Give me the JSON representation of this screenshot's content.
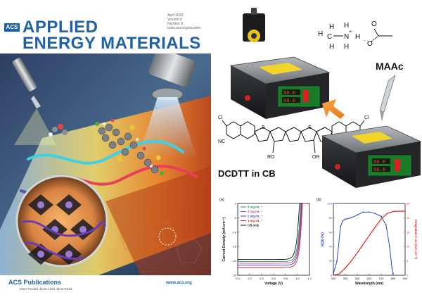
{
  "cover": {
    "badge": "ACS",
    "title_line1": "APPLIED",
    "title_line2": "ENERGY MATERIALS",
    "issue_line1": "April 2023",
    "issue_line2": "Volume 6",
    "issue_line3": "Number 8",
    "issue_line4": "pubs.acs.org/acsaem",
    "publisher": "ACS Publications",
    "tagline": "Most Trusted. Most Cited. Most Read.",
    "website": "www.acs.org"
  },
  "scheme": {
    "solvent_label": "MAAc",
    "molecule_label": "DCDTT in CB",
    "display_value1": "60.0",
    "display_value2": "60.0"
  },
  "chart_data": [
    {
      "type": "line",
      "panel": "(a)",
      "xlabel": "Voltage (V)",
      "ylabel": "Current Density (mA cm⁻²)",
      "x_ticks": [
        "0.0",
        "0.2",
        "0.4",
        "0.6",
        "0.8",
        "1.0",
        "1.2"
      ],
      "y_ticks": [
        "0",
        "-5",
        "-10",
        "-15",
        "-20",
        "-25"
      ],
      "xlim": [
        0.0,
        1.2
      ],
      "ylim": [
        -25,
        0
      ],
      "legend_position": "top-left",
      "series": [
        {
          "name": "4 mg mL⁻¹",
          "color": "#1f9e45",
          "jsc": -20.2,
          "voc": 1.05
        },
        {
          "name": "3 mg mL⁻¹",
          "color": "#d23a9a",
          "jsc": -20.8,
          "voc": 1.06
        },
        {
          "name": "2 mg mL⁻¹",
          "color": "#3b3bc8",
          "jsc": -21.5,
          "voc": 1.07
        },
        {
          "name": "1 mg mL⁻¹",
          "color": "#e02020",
          "jsc": -22.3,
          "voc": 1.08
        },
        {
          "name": "CB only",
          "color": "#111111",
          "jsc": -19.5,
          "voc": 1.03
        }
      ]
    },
    {
      "type": "line",
      "panel": "(b)",
      "xlabel": "Wavelength (nm)",
      "ylabel_left": "EQE (%)",
      "ylabel_right": "Integrated J_sc (mA cm⁻²)",
      "x_ticks": [
        "300",
        "400",
        "500",
        "600",
        "700",
        "800",
        "900"
      ],
      "y_ticks_left": [
        "0",
        "20",
        "40",
        "60",
        "80",
        "100"
      ],
      "y_ticks_right": [
        "0",
        "5",
        "10",
        "15",
        "20",
        "25"
      ],
      "xlim": [
        300,
        900
      ],
      "ylim_left": [
        0,
        100
      ],
      "ylim_right": [
        0,
        25
      ],
      "series": [
        {
          "name": "EQE",
          "color": "#2a48c8",
          "x": [
            300,
            330,
            360,
            380,
            400,
            450,
            500,
            550,
            600,
            650,
            700,
            740,
            770,
            790,
            800
          ],
          "y": [
            2,
            20,
            68,
            76,
            78,
            80,
            84,
            88,
            88,
            86,
            82,
            70,
            40,
            10,
            2
          ]
        },
        {
          "name": "Integrated Jsc",
          "color": "#e02020",
          "x": [
            300,
            350,
            400,
            450,
            500,
            550,
            600,
            650,
            700,
            750,
            800,
            850,
            900
          ],
          "y": [
            0,
            0.5,
            2.5,
            5,
            7.8,
            10.8,
            13.8,
            16.8,
            19.6,
            21.5,
            22.2,
            22.3,
            22.3
          ]
        }
      ]
    }
  ]
}
